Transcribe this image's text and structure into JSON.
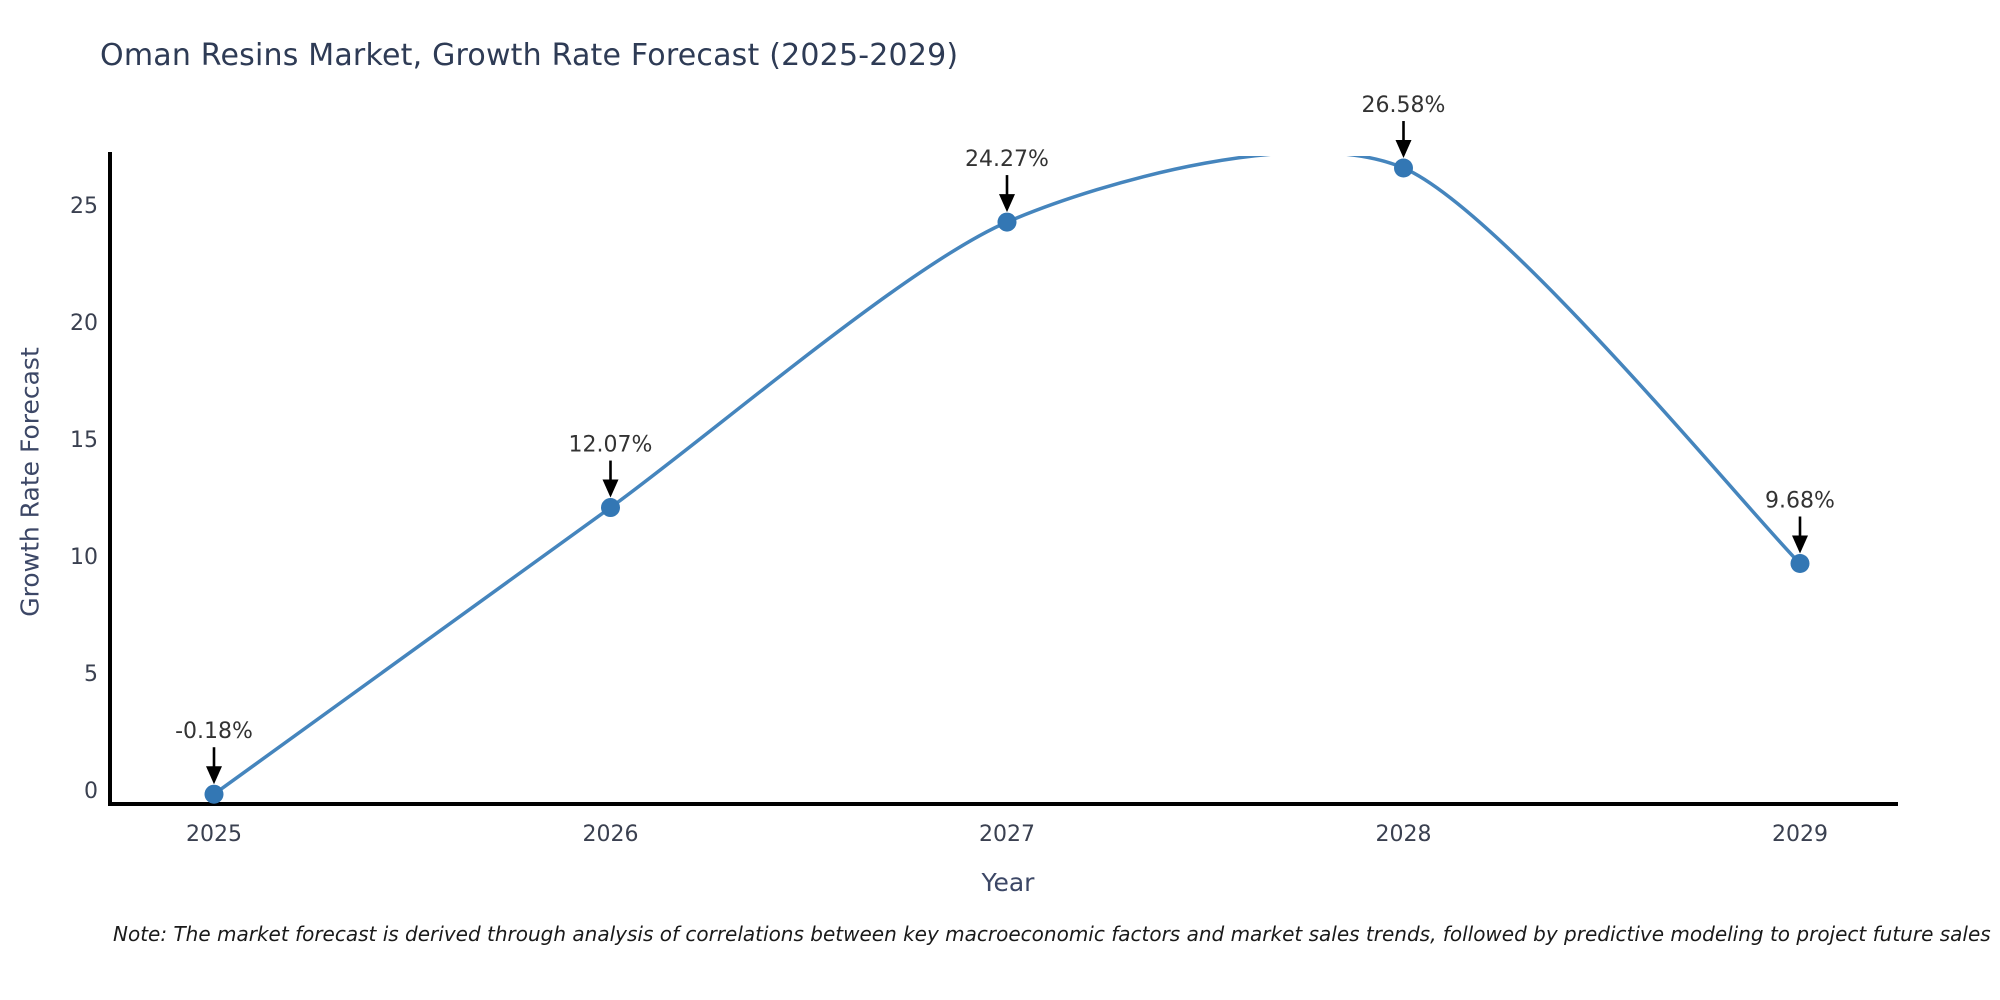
{
  "header": {
    "title": "Oman Resins Market, Growth Rate Forecast (2025-2029)"
  },
  "footer": {
    "note": "Note: The market forecast is derived through analysis of correlations between key macroeconomic factors and market sales trends, followed by predictive modeling to project future sales"
  },
  "chart_data": {
    "type": "line",
    "line_shape": "spline",
    "title": "Oman Resins Market, Growth Rate Forecast (2025-2029)",
    "xlabel": "Year",
    "ylabel": "Growth Rate Forecast",
    "x": [
      2025,
      2026,
      2027,
      2028,
      2029
    ],
    "series": [
      {
        "name": "Growth Rate Forecast",
        "values": [
          -0.18,
          12.07,
          24.27,
          26.58,
          9.68
        ]
      }
    ],
    "point_labels": [
      "-0.18%",
      "12.07%",
      "24.27%",
      "26.58%",
      "9.68%"
    ],
    "xticks": [
      "2025",
      "2026",
      "2027",
      "2028",
      "2029"
    ],
    "yticks": [
      0,
      5,
      10,
      15,
      20,
      25
    ],
    "ylim": [
      -0.6,
      27.1
    ],
    "grid": false,
    "legend": "none",
    "annotations_have_arrows": true,
    "colors": {
      "line": "#4585bd",
      "marker": "#3377b4",
      "axis_line": "#000000",
      "tick_label": "#3a4050",
      "annotation_text": "#333333",
      "annotation_arrow": "#000000",
      "title": "#2e3b55",
      "axis_label": "#3c4766"
    }
  }
}
